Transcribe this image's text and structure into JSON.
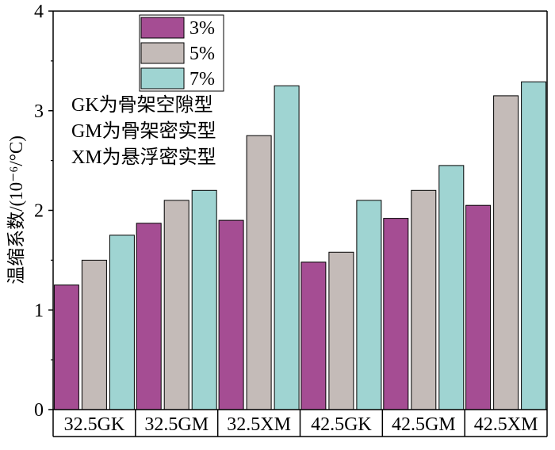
{
  "chart_data": {
    "type": "bar",
    "categories": [
      "32.5GK",
      "32.5GM",
      "32.5XM",
      "42.5GK",
      "42.5GM",
      "42.5XM"
    ],
    "series": [
      {
        "name": "3%",
        "color": "#a54d93",
        "values": [
          1.25,
          1.87,
          1.9,
          1.48,
          1.92,
          2.05
        ]
      },
      {
        "name": "5%",
        "color": "#c4bbb8",
        "values": [
          1.5,
          2.1,
          2.75,
          1.58,
          2.2,
          3.15
        ]
      },
      {
        "name": "7%",
        "color": "#9fd4d2",
        "values": [
          1.75,
          2.2,
          3.25,
          2.1,
          2.45,
          3.29
        ]
      }
    ],
    "ylabel": "温缩系数/(10⁻⁶/°C)",
    "xlabel": "",
    "ylim": [
      0,
      4
    ],
    "yticks": [
      0,
      1,
      2,
      3,
      4
    ],
    "legend_position": "top-left",
    "notes": [
      "GK为骨架空隙型",
      "GM为骨架密实型",
      "XM为悬浮密实型"
    ],
    "grid": false
  }
}
